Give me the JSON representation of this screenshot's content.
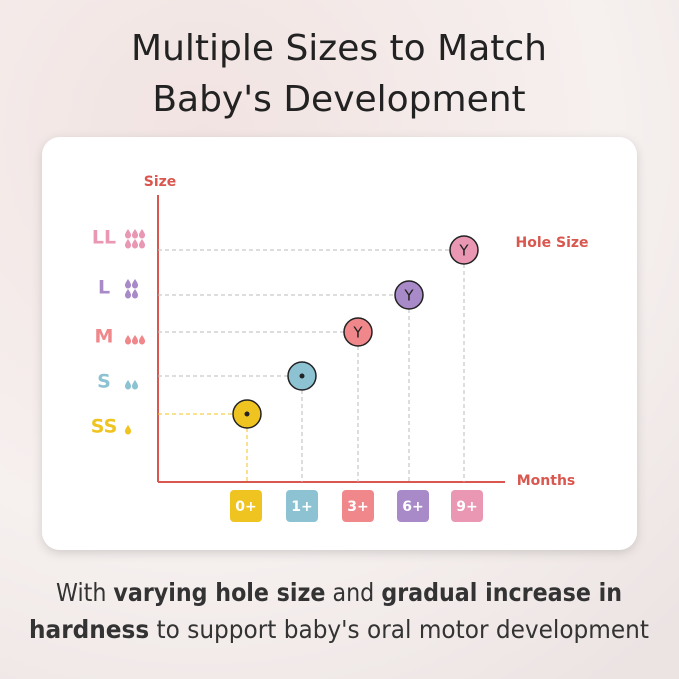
{
  "title": [
    "Multiple Sizes to Match",
    "Baby's Development"
  ],
  "diagram": {
    "y_axis_label": "Size",
    "x_axis_label": "Months",
    "hole_label": "Hole Size",
    "axis_color": "#d9574f",
    "sizes": [
      {
        "label": "SS",
        "color": "#f0c420",
        "drops": 1,
        "mark": "dot"
      },
      {
        "label": "S",
        "color": "#8cc2d2",
        "drops": 2,
        "mark": "dot"
      },
      {
        "label": "M",
        "color": "#ef878b",
        "drops": 3,
        "mark": "Y"
      },
      {
        "label": "L",
        "color": "#a98ac8",
        "drops": 4,
        "mark": "Y"
      },
      {
        "label": "LL",
        "color": "#e997b3",
        "drops": 6,
        "mark": "Y"
      }
    ],
    "months": [
      "0+",
      "1+",
      "3+",
      "6+",
      "9+"
    ]
  },
  "caption": [
    [
      {
        "text": "With ",
        "bold": false
      },
      {
        "text": "varying hole size",
        "bold": true
      },
      {
        "text": " and ",
        "bold": false
      },
      {
        "text": "gradual increase in",
        "bold": true
      }
    ],
    [
      {
        "text": "hardness",
        "bold": true
      },
      {
        "text": " to support baby's oral motor development",
        "bold": false
      }
    ]
  ]
}
